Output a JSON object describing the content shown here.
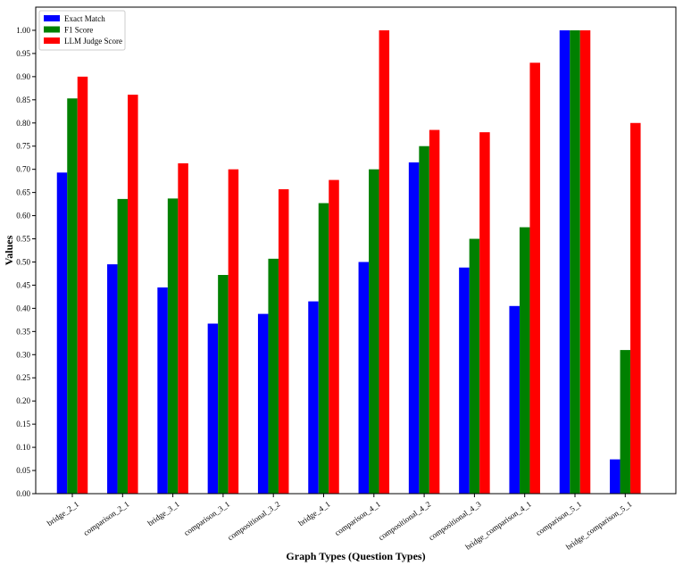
{
  "chart_data": {
    "type": "bar",
    "title": "",
    "xlabel": "Graph Types (Question Types)",
    "ylabel": "Values",
    "ylim": [
      0,
      1.05
    ],
    "yticks": [
      0.0,
      0.05,
      0.1,
      0.15,
      0.2,
      0.25,
      0.3,
      0.35,
      0.4,
      0.45,
      0.5,
      0.55,
      0.6,
      0.65,
      0.7,
      0.75,
      0.8,
      0.85,
      0.9,
      0.95,
      1.0
    ],
    "grid": false,
    "legend_position": "top-left",
    "categories": [
      "bridge_2_1",
      "comparison_2_1",
      "bridge_3_1",
      "comparison_3_1",
      "compositional_3_2",
      "bridge_4_1",
      "comparison_4_1",
      "compositional_4_2",
      "compositional_4_3",
      "bridge_comparison_4_1",
      "comparison_5_1",
      "bridge_comparison_5_1"
    ],
    "series": [
      {
        "name": "Exact Match",
        "color": "#0000ff",
        "values": [
          0.693,
          0.495,
          0.445,
          0.367,
          0.388,
          0.415,
          0.5,
          0.715,
          0.488,
          0.405,
          1.0,
          0.074
        ]
      },
      {
        "name": "F1 Score",
        "color": "#008000",
        "values": [
          0.853,
          0.636,
          0.637,
          0.472,
          0.507,
          0.627,
          0.7,
          0.75,
          0.55,
          0.575,
          1.0,
          0.31
        ]
      },
      {
        "name": "LLM Judge Score",
        "color": "#ff0000",
        "values": [
          0.9,
          0.861,
          0.713,
          0.7,
          0.657,
          0.677,
          1.0,
          0.785,
          0.78,
          0.93,
          1.0,
          0.8
        ]
      }
    ]
  }
}
